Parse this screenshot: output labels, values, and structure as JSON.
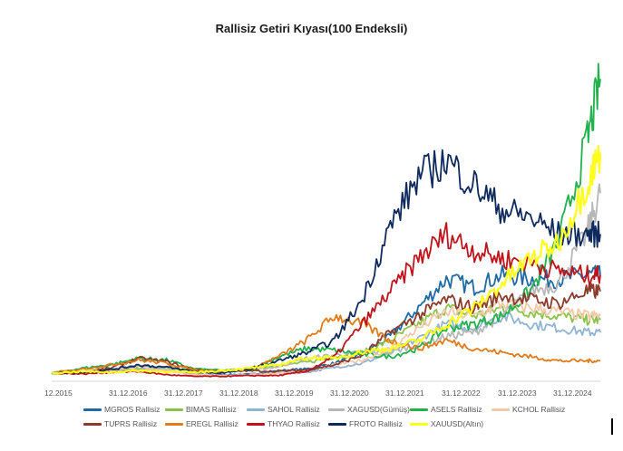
{
  "chart_data": {
    "type": "line",
    "title": "Rallisiz Getiri Kıyası(100 Endeksli)",
    "xlabel": "",
    "ylabel": "",
    "x_tick_labels": [
      "12.2015",
      "31.12.2016",
      "31.12.2017",
      "31.12.2018",
      "31.12.2019",
      "31.12.2020",
      "31.12.2021",
      "31.12.2022",
      "31.12.2023",
      "31.12.2024"
    ],
    "x_range": [
      2015.95,
      2025.75
    ],
    "y_axis_labels_visible": false,
    "ylim": [
      0,
      4000
    ],
    "grid": false,
    "legend_position": "bottom",
    "x": [
      2015.95,
      2016.5,
      2017.0,
      2017.5,
      2018.0,
      2018.5,
      2019.0,
      2019.5,
      2020.0,
      2020.5,
      2021.0,
      2021.5,
      2022.0,
      2022.5,
      2023.0,
      2023.5,
      2024.0,
      2024.5,
      2025.0,
      2025.5,
      2025.75
    ],
    "series": [
      {
        "name": "MGROS Rallisiz",
        "color": "#1f6aa5",
        "values": [
          100,
          105,
          125,
          160,
          130,
          90,
          80,
          85,
          130,
          150,
          220,
          330,
          550,
          900,
          1250,
          1150,
          1300,
          1250,
          1250,
          1300,
          1300
        ]
      },
      {
        "name": "BIMAS Rallisiz",
        "color": "#8bc34a",
        "values": [
          100,
          110,
          140,
          160,
          160,
          150,
          130,
          150,
          200,
          230,
          300,
          350,
          500,
          700,
          900,
          800,
          900,
          850,
          800,
          750,
          750
        ]
      },
      {
        "name": "SAHOL Rallisiz",
        "color": "#90b4d4",
        "values": [
          100,
          110,
          150,
          200,
          140,
          80,
          70,
          80,
          100,
          110,
          170,
          220,
          350,
          520,
          700,
          650,
          800,
          700,
          650,
          600,
          600
        ]
      },
      {
        "name": "XAGUSD(Gümüş)",
        "color": "#b7b7b7",
        "values": [
          100,
          120,
          130,
          150,
          140,
          110,
          120,
          130,
          180,
          280,
          320,
          350,
          350,
          450,
          550,
          600,
          800,
          1100,
          1200,
          1800,
          2300
        ]
      },
      {
        "name": "ASELS Rallisiz",
        "color": "#22b14c",
        "values": [
          100,
          160,
          200,
          280,
          260,
          150,
          130,
          140,
          300,
          400,
          380,
          330,
          300,
          400,
          650,
          700,
          800,
          1100,
          1700,
          2900,
          3700
        ]
      },
      {
        "name": "KCHOL Rallisiz",
        "color": "#f2c9a8",
        "values": [
          100,
          105,
          140,
          180,
          130,
          80,
          70,
          80,
          100,
          120,
          200,
          260,
          400,
          650,
          850,
          800,
          950,
          900,
          850,
          800,
          800
        ]
      },
      {
        "name": "TUPRS Rallisiz",
        "color": "#8b3a2b",
        "values": [
          100,
          110,
          160,
          280,
          240,
          140,
          120,
          130,
          120,
          140,
          200,
          320,
          600,
          800,
          1000,
          900,
          1050,
          1000,
          950,
          1100,
          1100
        ]
      },
      {
        "name": "EREGL Rallisiz",
        "color": "#e07b1a",
        "values": [
          100,
          150,
          200,
          260,
          220,
          140,
          120,
          150,
          300,
          500,
          800,
          700,
          500,
          400,
          500,
          400,
          350,
          300,
          250,
          250,
          250
        ]
      },
      {
        "name": "THYAO Rallisiz",
        "color": "#c0141c",
        "values": [
          100,
          90,
          110,
          120,
          80,
          60,
          60,
          70,
          70,
          120,
          300,
          700,
          1100,
          1500,
          1800,
          1600,
          1500,
          1450,
          1350,
          1300,
          1300
        ]
      },
      {
        "name": "FROTO Rallisiz",
        "color": "#0f2a5c",
        "values": [
          100,
          110,
          140,
          200,
          170,
          120,
          100,
          150,
          250,
          350,
          500,
          1000,
          1900,
          2500,
          2700,
          2400,
          2100,
          2000,
          1800,
          1800,
          1800
        ]
      },
      {
        "name": "XAUUSD(Altın)",
        "color": "#ffff1a",
        "values": [
          100,
          120,
          110,
          130,
          120,
          110,
          130,
          160,
          200,
          290,
          280,
          360,
          400,
          500,
          700,
          900,
          1200,
          1500,
          1700,
          2400,
          2800
        ]
      }
    ]
  }
}
